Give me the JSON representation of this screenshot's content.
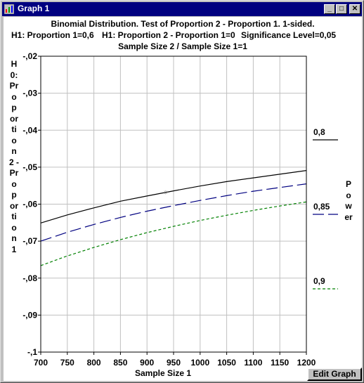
{
  "window": {
    "title": "Graph 1",
    "title_icon": "chart-icon",
    "minimize_glyph": "_",
    "maximize_glyph": "□",
    "close_glyph": "✕",
    "titlebar_color": "#000080"
  },
  "header": {
    "line1": "Binomial Distribution. Test of Proportion 2 - Proportion 1. 1-sided.",
    "line2_a": "H1: Proportion 1=0,6",
    "line2_b": "H1: Proportion 2 - Proportion 1=0",
    "line2_c": "Significance Level=0,05",
    "line3": "Sample Size 2 / Sample Size 1=1"
  },
  "edit_button": {
    "label": "Edit Graph"
  },
  "chart_data": {
    "type": "line",
    "title": "Binomial Distribution. Test of Proportion 2 - Proportion 1. 1-sided.",
    "ylabel": "H0: Proportion 2 - Proportion 1",
    "xlabel": "Sample Size 1",
    "xlim": [
      700,
      1200
    ],
    "ylim": [
      -0.1,
      -0.02
    ],
    "grid": true,
    "x_ticks": [
      700,
      750,
      800,
      850,
      900,
      950,
      1000,
      1050,
      1100,
      1150,
      1200
    ],
    "x_tick_labels": [
      "700",
      "750",
      "800",
      "850",
      "900",
      "950",
      "1000",
      "1050",
      "1100",
      "1150",
      "1200"
    ],
    "y_ticks": [
      -0.02,
      -0.03,
      -0.04,
      -0.05,
      -0.06,
      -0.07,
      -0.08,
      -0.09,
      -0.1
    ],
    "y_tick_labels": [
      "-,02",
      "-,03",
      "-,04",
      "-,05",
      "-,06",
      "-,07",
      "-,08",
      "-,09",
      "-,1"
    ],
    "legend_title": "Power",
    "legend_position": "right",
    "x": [
      700,
      750,
      800,
      850,
      900,
      950,
      1000,
      1050,
      1100,
      1150,
      1200
    ],
    "series": [
      {
        "name": "0,8",
        "color": "#000000",
        "dash": "solid",
        "values": [
          -0.0651,
          -0.0629,
          -0.061,
          -0.0592,
          -0.0578,
          -0.0564,
          -0.0551,
          -0.0539,
          -0.0529,
          -0.0519,
          -0.0509
        ]
      },
      {
        "name": "0,85",
        "color": "#000080",
        "dash": "long-dash",
        "values": [
          -0.07,
          -0.0676,
          -0.0655,
          -0.0636,
          -0.0619,
          -0.0604,
          -0.059,
          -0.0577,
          -0.0565,
          -0.0555,
          -0.0545
        ]
      },
      {
        "name": "0,9",
        "color": "#008000",
        "dash": "short-dash",
        "values": [
          -0.0766,
          -0.074,
          -0.0717,
          -0.0696,
          -0.0677,
          -0.066,
          -0.0644,
          -0.063,
          -0.0617,
          -0.0605,
          -0.0594
        ]
      }
    ],
    "annotations": [
      {
        "text": "☼",
        "x": 935,
        "y": -0.0565
      }
    ]
  }
}
